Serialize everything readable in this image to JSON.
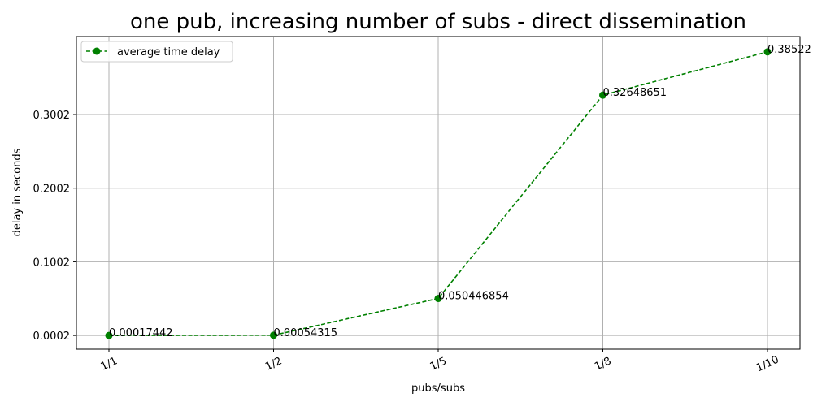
{
  "chart_data": {
    "type": "line",
    "title": "one pub, increasing number of subs - direct dissemination",
    "xlabel": "pubs/subs",
    "ylabel": "delay in seconds",
    "categories": [
      "1/1",
      "1/2",
      "1/5",
      "1/8",
      "1/10"
    ],
    "series": [
      {
        "name": "average time delay",
        "values": [
          0.00017442,
          0.00054315,
          0.050446854,
          0.32648651,
          0.38522
        ],
        "labels": [
          "0.00017442",
          "0.00054315",
          "0.050446854",
          "0.32648651",
          "0.38522"
        ],
        "color": "#008000",
        "linestyle": "dashed",
        "marker": "circle"
      }
    ],
    "yticks": [
      0.0002,
      0.1002,
      0.2002,
      0.3002
    ],
    "ytick_labels": [
      "0.0002",
      "0.1002",
      "0.2002",
      "0.3002"
    ],
    "ylim": [
      -0.0184,
      0.406
    ],
    "grid": true,
    "legend_position": "top-left",
    "xtick_rotation_deg": 25
  }
}
